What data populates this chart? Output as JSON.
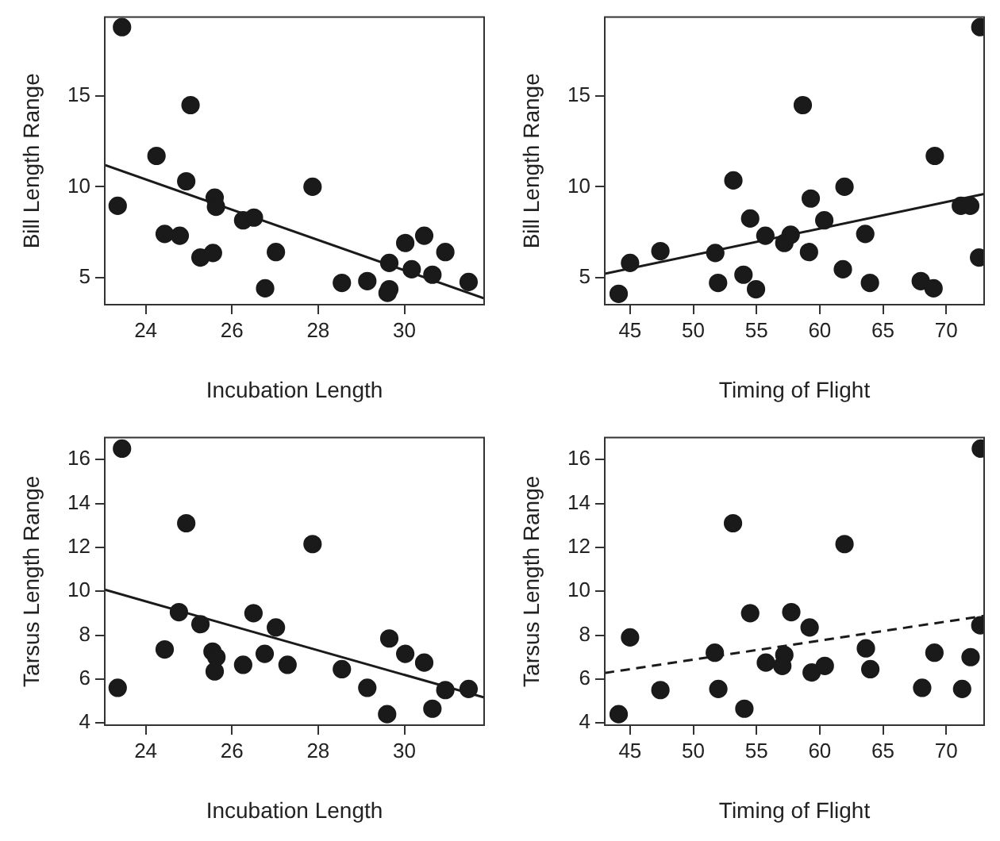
{
  "chart_data": [
    {
      "type": "scatter",
      "xlabel": "Incubation Length",
      "ylabel": "Bill Length Range",
      "xlim": [
        23.05,
        31.85
      ],
      "ylim": [
        3.5,
        19.35
      ],
      "xticks": [
        24,
        26,
        28,
        30
      ],
      "yticks": [
        5,
        10,
        15
      ],
      "grid": false,
      "legend": false,
      "series": [
        {
          "type": "scatter",
          "marker": "circle",
          "color": "#1a1a1a",
          "x": [
            23.45,
            23.35,
            25.04,
            24.25,
            24.94,
            24.44,
            24.79,
            25.6,
            25.63,
            25.27,
            25.56,
            26.26,
            26.51,
            26.77,
            27.02,
            27.87,
            28.55,
            29.14,
            29.65,
            29.61,
            29.65,
            30.02,
            30.17,
            30.46,
            30.65,
            30.95,
            31.49
          ],
          "values": [
            18.8,
            8.95,
            14.5,
            11.7,
            10.3,
            7.4,
            7.3,
            9.4,
            8.9,
            6.1,
            6.35,
            8.15,
            8.3,
            4.4,
            6.4,
            10.0,
            4.7,
            4.8,
            4.35,
            4.15,
            5.8,
            6.9,
            5.45,
            7.3,
            5.15,
            6.4,
            4.75
          ]
        },
        {
          "type": "line",
          "line_style": "solid",
          "color": "#1a1a1a",
          "x": [
            23.05,
            31.85
          ],
          "values": [
            11.2,
            3.85
          ]
        }
      ]
    },
    {
      "type": "scatter",
      "xlabel": "Timing of Flight",
      "ylabel": "Bill Length Range",
      "xlim": [
        43,
        73
      ],
      "ylim": [
        3.5,
        19.35
      ],
      "xticks": [
        45,
        50,
        55,
        60,
        65,
        70
      ],
      "yticks": [
        5,
        10,
        15
      ],
      "grid": false,
      "legend": false,
      "series": [
        {
          "type": "scatter",
          "marker": "circle",
          "color": "#1a1a1a",
          "x": [
            44.1,
            45.0,
            47.4,
            51.74,
            51.96,
            53.17,
            53.97,
            54.5,
            54.96,
            55.7,
            57.2,
            57.7,
            58.66,
            59.29,
            59.15,
            60.36,
            61.96,
            61.83,
            63.6,
            63.97,
            67.99,
            69.0,
            69.1,
            71.16,
            71.9,
            72.6,
            72.7
          ],
          "values": [
            4.1,
            5.8,
            6.45,
            6.35,
            4.7,
            10.35,
            5.15,
            8.25,
            4.35,
            7.3,
            6.9,
            7.35,
            14.5,
            9.35,
            6.4,
            8.15,
            10.0,
            5.45,
            7.4,
            4.7,
            4.8,
            4.4,
            11.7,
            8.95,
            8.95,
            6.1,
            18.8
          ]
        },
        {
          "type": "line",
          "line_style": "solid",
          "color": "#1a1a1a",
          "x": [
            43,
            73
          ],
          "values": [
            5.2,
            9.6
          ]
        }
      ]
    },
    {
      "type": "scatter",
      "xlabel": "Incubation Length",
      "ylabel": "Tarsus Length Range",
      "xlim": [
        23.05,
        31.85
      ],
      "ylim": [
        3.9,
        17.0
      ],
      "xticks": [
        24,
        26,
        28,
        30
      ],
      "yticks": [
        4,
        6,
        8,
        10,
        12,
        14,
        16
      ],
      "grid": false,
      "legend": false,
      "series": [
        {
          "type": "scatter",
          "marker": "circle",
          "color": "#1a1a1a",
          "x": [
            23.45,
            23.35,
            24.94,
            24.77,
            24.44,
            25.27,
            25.55,
            25.64,
            25.6,
            26.26,
            26.5,
            26.76,
            27.02,
            27.29,
            27.87,
            28.55,
            29.14,
            29.6,
            29.65,
            30.02,
            30.46,
            30.65,
            30.95,
            31.49
          ],
          "values": [
            16.5,
            5.6,
            13.1,
            9.05,
            7.35,
            8.5,
            7.25,
            7.0,
            6.35,
            6.65,
            9.0,
            7.15,
            8.35,
            6.65,
            12.15,
            6.45,
            5.6,
            4.4,
            7.85,
            7.15,
            6.75,
            4.65,
            5.5,
            5.55
          ]
        },
        {
          "type": "line",
          "line_style": "solid",
          "color": "#1a1a1a",
          "x": [
            23.05,
            31.85
          ],
          "values": [
            10.07,
            5.16
          ]
        }
      ]
    },
    {
      "type": "scatter",
      "xlabel": "Timing of Flight",
      "ylabel": "Tarsus Length Range",
      "xlim": [
        43,
        73
      ],
      "ylim": [
        3.9,
        17.0
      ],
      "xticks": [
        45,
        50,
        55,
        60,
        65,
        70
      ],
      "yticks": [
        4,
        6,
        8,
        10,
        12,
        14,
        16
      ],
      "grid": false,
      "legend": false,
      "series": [
        {
          "type": "scatter",
          "marker": "circle",
          "color": "#1a1a1a",
          "x": [
            44.1,
            45.0,
            47.4,
            51.7,
            51.98,
            53.14,
            54.04,
            54.5,
            55.74,
            57.2,
            57.04,
            57.75,
            59.2,
            59.36,
            60.4,
            61.96,
            63.65,
            64.0,
            68.1,
            69.07,
            71.26,
            71.93,
            72.7,
            72.74
          ],
          "values": [
            4.4,
            7.9,
            5.5,
            7.2,
            5.55,
            13.1,
            4.65,
            9.0,
            6.75,
            7.1,
            6.6,
            9.05,
            8.35,
            6.3,
            6.6,
            12.15,
            7.4,
            6.45,
            5.6,
            7.2,
            5.55,
            7.0,
            8.45,
            16.5
          ]
        },
        {
          "type": "line",
          "line_style": "dashed",
          "color": "#1a1a1a",
          "x": [
            43,
            73
          ],
          "values": [
            6.28,
            8.88
          ]
        }
      ]
    }
  ]
}
